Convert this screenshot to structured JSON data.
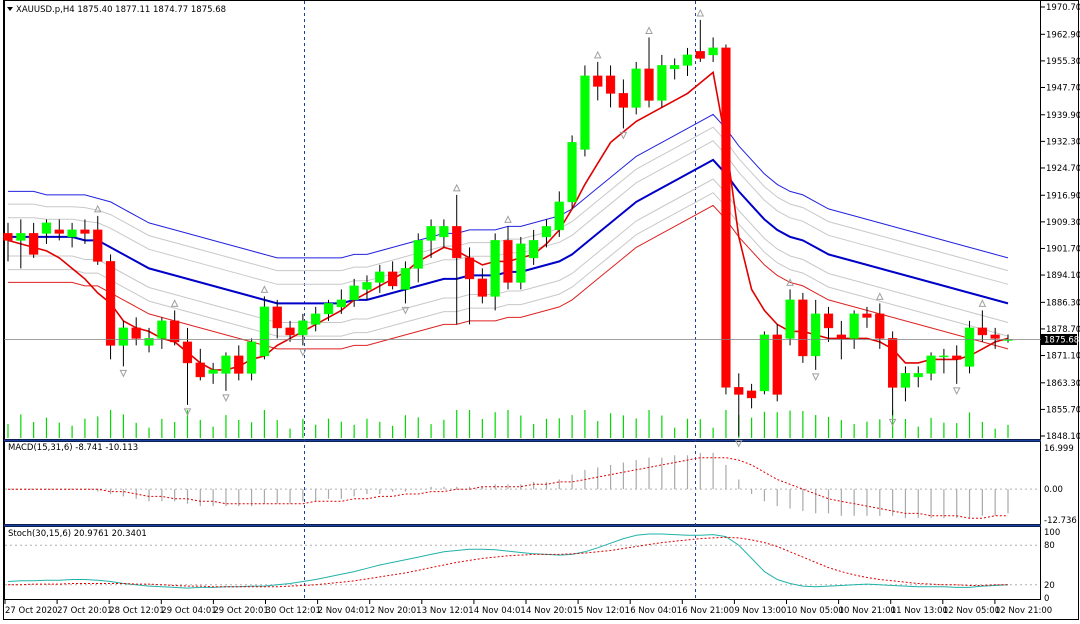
{
  "header": {
    "symbol_line": "XAUUSD.p,H4  1875.40 1877.11 1874.77 1875.68",
    "current_price": "1875.68"
  },
  "colors": {
    "bull": "#00ff00",
    "bear": "#ff0000",
    "fractal": "#a0a0a0",
    "ma_fast": "#e00000",
    "ma_mid": "#0000c8",
    "envelope_upper": "#2222dd",
    "envelope_lower": "#dd2222",
    "envelope_inner": "#c8c8c8",
    "volume": "#00d800",
    "macd_hist": "#a9a9a9",
    "macd_signal": "#e00000",
    "stoch_main": "#20b2aa",
    "stoch_signal": "#e00000",
    "grid_dot": "#b0b0b0",
    "separator": "#1a3fa0"
  },
  "price_axis": [
    "1970.70",
    "1962.90",
    "1955.30",
    "1947.70",
    "1939.90",
    "1932.30",
    "1924.70",
    "1916.90",
    "1909.30",
    "1901.70",
    "1894.10",
    "1886.30",
    "1878.70",
    "1871.10",
    "1863.30",
    "1855.70",
    "1848.10"
  ],
  "macd": {
    "label": "MACD(15,31,6) -8.741 -10.113",
    "axis": [
      "16.999",
      "0.00",
      "-12.736"
    ]
  },
  "stoch": {
    "label": "Stoch(30,15,6) 20.9761 20.3401",
    "axis": [
      "100",
      "80",
      "20",
      "0"
    ]
  },
  "time_axis": [
    "27 Oct 2020",
    "27 Oct 20:01",
    "28 Oct 12:01",
    "29 Oct 04:01",
    "29 Oct 20:01",
    "30 Oct 12:01",
    "2 Nov 04:01",
    "2 Nov 20:01",
    "3 Nov 12:01",
    "4 Nov 04:01",
    "4 Nov 20:01",
    "5 Nov 12:01",
    "6 Nov 04:01",
    "6 Nov 21:00",
    "9 Nov 13:00",
    "10 Nov 05:00",
    "10 Nov 21:00",
    "11 Nov 13:00",
    "12 Nov 05:00",
    "12 Nov 21:00"
  ],
  "chart_data": {
    "type": "candlestick",
    "symbol": "XAUUSD.p",
    "timeframe": "H4",
    "ylim": [
      1848.1,
      1970.7
    ],
    "candles": [
      {
        "o": 1906,
        "h": 1909,
        "l": 1898,
        "c": 1904
      },
      {
        "o": 1904,
        "h": 1910,
        "l": 1896,
        "c": 1906
      },
      {
        "o": 1906,
        "h": 1909,
        "l": 1899,
        "c": 1900
      },
      {
        "o": 1906,
        "h": 1910,
        "l": 1903,
        "c": 1909
      },
      {
        "o": 1907,
        "h": 1910,
        "l": 1904,
        "c": 1906
      },
      {
        "o": 1905,
        "h": 1909,
        "l": 1902,
        "c": 1907
      },
      {
        "o": 1907,
        "h": 1910,
        "l": 1903,
        "c": 1906
      },
      {
        "o": 1907,
        "h": 1911,
        "l": 1897,
        "c": 1898
      },
      {
        "o": 1898,
        "h": 1900,
        "l": 1870,
        "c": 1874
      },
      {
        "o": 1874,
        "h": 1881,
        "l": 1868,
        "c": 1879
      },
      {
        "o": 1879,
        "h": 1882,
        "l": 1874,
        "c": 1876
      },
      {
        "o": 1874,
        "h": 1879,
        "l": 1872,
        "c": 1876
      },
      {
        "o": 1876,
        "h": 1882,
        "l": 1873,
        "c": 1881
      },
      {
        "o": 1881,
        "h": 1884,
        "l": 1874,
        "c": 1875
      },
      {
        "o": 1875,
        "h": 1879,
        "l": 1857,
        "c": 1869
      },
      {
        "o": 1869,
        "h": 1873,
        "l": 1864,
        "c": 1865
      },
      {
        "o": 1866,
        "h": 1869,
        "l": 1863,
        "c": 1867
      },
      {
        "o": 1866,
        "h": 1872,
        "l": 1861,
        "c": 1871
      },
      {
        "o": 1871,
        "h": 1874,
        "l": 1864,
        "c": 1866
      },
      {
        "o": 1866,
        "h": 1876,
        "l": 1864,
        "c": 1875
      },
      {
        "o": 1871,
        "h": 1888,
        "l": 1870,
        "c": 1885
      },
      {
        "o": 1885,
        "h": 1887,
        "l": 1876,
        "c": 1879
      },
      {
        "o": 1879,
        "h": 1881,
        "l": 1875,
        "c": 1877
      },
      {
        "o": 1877,
        "h": 1883,
        "l": 1874,
        "c": 1881
      },
      {
        "o": 1880,
        "h": 1885,
        "l": 1878,
        "c": 1883
      },
      {
        "o": 1883,
        "h": 1887,
        "l": 1881,
        "c": 1886
      },
      {
        "o": 1885,
        "h": 1890,
        "l": 1883,
        "c": 1887
      },
      {
        "o": 1887,
        "h": 1893,
        "l": 1885,
        "c": 1891
      },
      {
        "o": 1890,
        "h": 1894,
        "l": 1887,
        "c": 1892
      },
      {
        "o": 1892,
        "h": 1897,
        "l": 1889,
        "c": 1895
      },
      {
        "o": 1895,
        "h": 1898,
        "l": 1890,
        "c": 1891
      },
      {
        "o": 1890,
        "h": 1898,
        "l": 1886,
        "c": 1896
      },
      {
        "o": 1896,
        "h": 1906,
        "l": 1892,
        "c": 1904
      },
      {
        "o": 1904,
        "h": 1910,
        "l": 1899,
        "c": 1908
      },
      {
        "o": 1905,
        "h": 1910,
        "l": 1902,
        "c": 1908
      },
      {
        "o": 1908,
        "h": 1917,
        "l": 1880,
        "c": 1899
      },
      {
        "o": 1899,
        "h": 1902,
        "l": 1880,
        "c": 1893
      },
      {
        "o": 1893,
        "h": 1896,
        "l": 1886,
        "c": 1888
      },
      {
        "o": 1888,
        "h": 1906,
        "l": 1884,
        "c": 1904
      },
      {
        "o": 1904,
        "h": 1908,
        "l": 1890,
        "c": 1892
      },
      {
        "o": 1892,
        "h": 1905,
        "l": 1890,
        "c": 1903
      },
      {
        "o": 1899,
        "h": 1907,
        "l": 1897,
        "c": 1904
      },
      {
        "o": 1905,
        "h": 1910,
        "l": 1902,
        "c": 1908
      },
      {
        "o": 1907,
        "h": 1918,
        "l": 1905,
        "c": 1915
      },
      {
        "o": 1915,
        "h": 1934,
        "l": 1913,
        "c": 1932
      },
      {
        "o": 1930,
        "h": 1954,
        "l": 1928,
        "c": 1951
      },
      {
        "o": 1951,
        "h": 1955,
        "l": 1944,
        "c": 1948
      },
      {
        "o": 1951,
        "h": 1954,
        "l": 1942,
        "c": 1946
      },
      {
        "o": 1946,
        "h": 1950,
        "l": 1936,
        "c": 1942
      },
      {
        "o": 1942,
        "h": 1955,
        "l": 1940,
        "c": 1953
      },
      {
        "o": 1953,
        "h": 1962,
        "l": 1942,
        "c": 1944
      },
      {
        "o": 1944,
        "h": 1957,
        "l": 1942,
        "c": 1954
      },
      {
        "o": 1953,
        "h": 1956,
        "l": 1950,
        "c": 1954
      },
      {
        "o": 1954,
        "h": 1959,
        "l": 1951,
        "c": 1957
      },
      {
        "o": 1958,
        "h": 1967,
        "l": 1955,
        "c": 1956
      },
      {
        "o": 1957,
        "h": 1962,
        "l": 1955,
        "c": 1959
      },
      {
        "o": 1959,
        "h": 1960,
        "l": 1860,
        "c": 1862
      },
      {
        "o": 1862,
        "h": 1866,
        "l": 1848,
        "c": 1860
      },
      {
        "o": 1861,
        "h": 1863,
        "l": 1856,
        "c": 1859
      },
      {
        "o": 1861,
        "h": 1878,
        "l": 1860,
        "c": 1877
      },
      {
        "o": 1877,
        "h": 1880,
        "l": 1858,
        "c": 1860
      },
      {
        "o": 1876,
        "h": 1890,
        "l": 1874,
        "c": 1887
      },
      {
        "o": 1887,
        "h": 1889,
        "l": 1869,
        "c": 1871
      },
      {
        "o": 1871,
        "h": 1887,
        "l": 1867,
        "c": 1883
      },
      {
        "o": 1883,
        "h": 1885,
        "l": 1875,
        "c": 1879
      },
      {
        "o": 1877,
        "h": 1881,
        "l": 1870,
        "c": 1876
      },
      {
        "o": 1876,
        "h": 1884,
        "l": 1873,
        "c": 1883
      },
      {
        "o": 1883,
        "h": 1885,
        "l": 1879,
        "c": 1882
      },
      {
        "o": 1883,
        "h": 1886,
        "l": 1873,
        "c": 1876
      },
      {
        "o": 1876,
        "h": 1878,
        "l": 1854,
        "c": 1862
      },
      {
        "o": 1862,
        "h": 1868,
        "l": 1858,
        "c": 1866
      },
      {
        "o": 1865,
        "h": 1868,
        "l": 1862,
        "c": 1866
      },
      {
        "o": 1866,
        "h": 1872,
        "l": 1864,
        "c": 1871
      },
      {
        "o": 1871,
        "h": 1873,
        "l": 1866,
        "c": 1871
      },
      {
        "o": 1871,
        "h": 1874,
        "l": 1863,
        "c": 1870
      },
      {
        "o": 1868,
        "h": 1881,
        "l": 1866,
        "c": 1879
      },
      {
        "o": 1879,
        "h": 1884,
        "l": 1875,
        "c": 1877
      },
      {
        "o": 1877,
        "h": 1879,
        "l": 1873,
        "c": 1876
      },
      {
        "o": 1875.4,
        "h": 1877.11,
        "l": 1874.77,
        "c": 1875.68
      }
    ],
    "ma_fast": [
      1904,
      1903,
      1902,
      1901,
      1899,
      1896,
      1893,
      1889,
      1886,
      1881,
      1879,
      1878,
      1876,
      1875,
      1872,
      1869,
      1867,
      1867,
      1868,
      1870,
      1871,
      1874,
      1876,
      1878,
      1880,
      1882,
      1884,
      1887,
      1889,
      1891,
      1893,
      1895,
      1898,
      1900,
      1902,
      1901,
      1899,
      1897,
      1898,
      1898,
      1899,
      1900,
      1903,
      1907,
      1913,
      1920,
      1926,
      1932,
      1935,
      1938,
      1940,
      1942,
      1944,
      1946,
      1949,
      1952,
      1932,
      1905,
      1890,
      1884,
      1880,
      1878,
      1878,
      1877,
      1876,
      1876,
      1876,
      1876,
      1875,
      1873,
      1869,
      1869,
      1870,
      1870,
      1870,
      1871,
      1873,
      1875,
      1876
    ],
    "ma_mid": [
      1905,
      1905,
      1905,
      1905,
      1905,
      1905,
      1904,
      1904,
      1902,
      1900,
      1898,
      1896,
      1895,
      1894,
      1893,
      1892,
      1891,
      1890,
      1889,
      1888,
      1887,
      1886,
      1886,
      1886,
      1886,
      1886,
      1886,
      1887,
      1887,
      1888,
      1889,
      1890,
      1891,
      1892,
      1893,
      1893,
      1894,
      1894,
      1894,
      1895,
      1895,
      1896,
      1897,
      1898,
      1900,
      1903,
      1906,
      1909,
      1912,
      1915,
      1917,
      1919,
      1921,
      1923,
      1925,
      1927,
      1923,
      1918,
      1914,
      1910,
      1907,
      1905,
      1904,
      1902,
      1900,
      1899,
      1898,
      1897,
      1896,
      1895,
      1894,
      1893,
      1892,
      1891,
      1890,
      1889,
      1888,
      1887,
      1886
    ],
    "envelope_upper": [
      1918,
      1918,
      1918,
      1917,
      1917,
      1917,
      1917,
      1916,
      1915,
      1913,
      1911,
      1909,
      1908,
      1907,
      1906,
      1905,
      1904,
      1903,
      1902,
      1901,
      1900,
      1899,
      1899,
      1899,
      1899,
      1899,
      1899,
      1900,
      1900,
      1901,
      1902,
      1903,
      1904,
      1905,
      1906,
      1906,
      1907,
      1907,
      1907,
      1908,
      1908,
      1909,
      1910,
      1911,
      1913,
      1916,
      1919,
      1922,
      1925,
      1928,
      1930,
      1932,
      1934,
      1936,
      1938,
      1940,
      1936,
      1931,
      1927,
      1923,
      1920,
      1918,
      1917,
      1915,
      1913,
      1912,
      1911,
      1910,
      1909,
      1908,
      1907,
      1906,
      1905,
      1904,
      1903,
      1902,
      1901,
      1900,
      1899
    ],
    "envelope_lower": [
      1892,
      1892,
      1892,
      1892,
      1892,
      1892,
      1891,
      1891,
      1889,
      1887,
      1885,
      1883,
      1882,
      1881,
      1880,
      1879,
      1878,
      1877,
      1876,
      1875,
      1874,
      1873,
      1873,
      1873,
      1873,
      1873,
      1873,
      1874,
      1874,
      1875,
      1876,
      1877,
      1878,
      1879,
      1880,
      1880,
      1881,
      1881,
      1881,
      1882,
      1882,
      1883,
      1884,
      1885,
      1887,
      1890,
      1893,
      1896,
      1899,
      1902,
      1904,
      1906,
      1908,
      1910,
      1912,
      1914,
      1910,
      1905,
      1901,
      1897,
      1894,
      1892,
      1891,
      1889,
      1887,
      1886,
      1885,
      1884,
      1883,
      1882,
      1881,
      1880,
      1879,
      1878,
      1877,
      1876,
      1875,
      1874,
      1873
    ],
    "macd_hist": [
      0,
      0,
      0,
      0,
      0,
      0,
      0,
      -1,
      -2,
      -3,
      -4,
      -5,
      -5,
      -5,
      -6,
      -7,
      -7,
      -7,
      -7,
      -7,
      -6,
      -6,
      -6,
      -5,
      -5,
      -4,
      -4,
      -3,
      -2,
      -2,
      -1,
      -1,
      0,
      1,
      1,
      1,
      1,
      1,
      2,
      2,
      2,
      3,
      3,
      4,
      6,
      8,
      9,
      10,
      11,
      12,
      13,
      13,
      14,
      14,
      15,
      15,
      10,
      4,
      -2,
      -5,
      -7,
      -8,
      -9,
      -10,
      -10,
      -11,
      -11,
      -11,
      -11,
      -11,
      -12,
      -12,
      -12,
      -12,
      -12,
      -12,
      -11,
      -11,
      -10
    ],
    "macd_signal": [
      0,
      0,
      0,
      0,
      0,
      0,
      0,
      0,
      -1,
      -1,
      -2,
      -3,
      -3,
      -4,
      -4,
      -5,
      -5,
      -6,
      -6,
      -6,
      -6,
      -6,
      -6,
      -6,
      -5,
      -5,
      -5,
      -4,
      -4,
      -3,
      -3,
      -2,
      -2,
      -1,
      -1,
      0,
      0,
      1,
      1,
      1,
      1,
      2,
      2,
      3,
      3,
      4,
      5,
      6,
      7,
      8,
      9,
      10,
      11,
      12,
      13,
      13,
      13,
      12,
      10,
      7,
      4,
      2,
      0,
      -2,
      -4,
      -5,
      -6,
      -7,
      -8,
      -9,
      -10,
      -10,
      -11,
      -11,
      -11,
      -12,
      -12,
      -11,
      -11
    ],
    "stoch_main": [
      25,
      26,
      26,
      27,
      27,
      28,
      28,
      27,
      25,
      22,
      20,
      18,
      17,
      16,
      15,
      16,
      16,
      17,
      17,
      18,
      18,
      20,
      22,
      25,
      28,
      32,
      36,
      40,
      45,
      50,
      54,
      58,
      62,
      66,
      70,
      72,
      74,
      74,
      73,
      71,
      69,
      67,
      66,
      65,
      66,
      70,
      76,
      83,
      90,
      95,
      97,
      97,
      96,
      95,
      95,
      96,
      93,
      80,
      60,
      40,
      28,
      22,
      18,
      17,
      18,
      19,
      20,
      21,
      20,
      19,
      18,
      17,
      17,
      17,
      16,
      16,
      18,
      19,
      20
    ],
    "stoch_signal": [
      20,
      20,
      21,
      21,
      21,
      22,
      22,
      22,
      22,
      22,
      21,
      21,
      20,
      19,
      18,
      18,
      17,
      17,
      17,
      17,
      17,
      17,
      18,
      19,
      20,
      22,
      24,
      26,
      29,
      32,
      35,
      38,
      42,
      46,
      50,
      54,
      57,
      60,
      62,
      64,
      65,
      66,
      66,
      66,
      67,
      68,
      70,
      72,
      75,
      78,
      81,
      84,
      86,
      88,
      90,
      91,
      92,
      91,
      88,
      84,
      78,
      70,
      62,
      54,
      46,
      40,
      35,
      31,
      28,
      26,
      24,
      22,
      21,
      20,
      20,
      19,
      19,
      20,
      20
    ]
  }
}
